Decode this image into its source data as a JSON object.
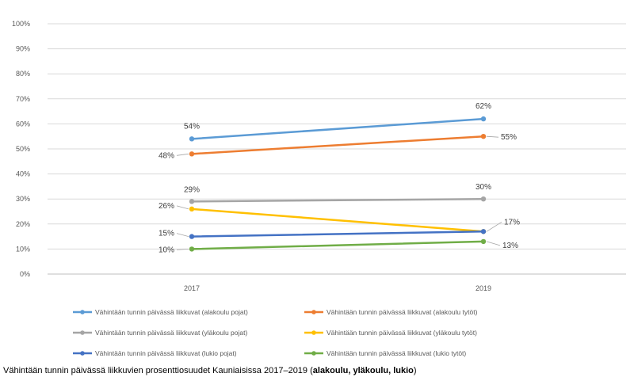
{
  "chart_data": {
    "type": "line",
    "categories": [
      "2017",
      "2019"
    ],
    "ylim": [
      0,
      100
    ],
    "yticks": [
      "0%",
      "10%",
      "20%",
      "30%",
      "40%",
      "50%",
      "60%",
      "70%",
      "80%",
      "90%",
      "100%"
    ],
    "grid": true,
    "legend_position": "bottom",
    "series": [
      {
        "name": "Vähintään tunnin päivässä liikkuvat (alakoulu pojat)",
        "values": [
          54,
          62
        ],
        "labels": [
          "54%",
          "62%"
        ],
        "color": "#5b9bd5"
      },
      {
        "name": "Vähintään tunnin päivässä liikkuvat (alakoulu tytöt)",
        "values": [
          48,
          55
        ],
        "labels": [
          "48%",
          "55%"
        ],
        "color": "#ed7d31"
      },
      {
        "name": "Vähintään tunnin päivässä liikkuvat (yläkoulu pojat)",
        "values": [
          29,
          30
        ],
        "labels": [
          "29%",
          "30%"
        ],
        "color": "#a5a5a5"
      },
      {
        "name": "Vähintään tunnin päivässä liikkuvat (yläkoulu tytöt)",
        "values": [
          26,
          17
        ],
        "labels": [
          "26%",
          "17%"
        ],
        "color": "#ffc000"
      },
      {
        "name": "Vähintään tunnin päivässä liikkuvat (lukio pojat)",
        "values": [
          15,
          17
        ],
        "labels": [
          "15%",
          ""
        ],
        "color": "#4472c4"
      },
      {
        "name": "Vähintään tunnin päivässä liikkuvat (lukio tytöt)",
        "values": [
          10,
          13
        ],
        "labels": [
          "10%",
          "13%"
        ],
        "color": "#70ad47"
      }
    ]
  },
  "caption": {
    "text": "Vähintään tunnin päivässä liikkuvien prosenttiosuudet Kauniaisissa 2017–2019 (",
    "bold": "alakoulu, yläkoulu, lukio",
    "end": ")"
  }
}
